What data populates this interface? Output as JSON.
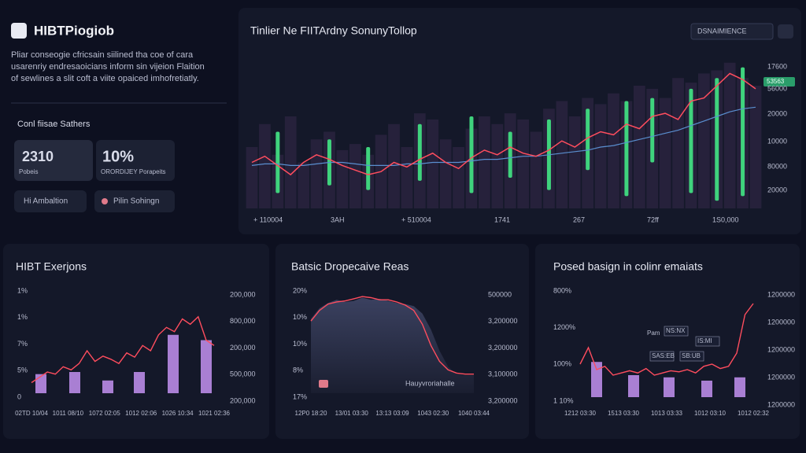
{
  "sidebar": {
    "brand": "HIBTPiogiob",
    "description": [
      "Pliar conseogie cfricsain siilined tha coe of cara",
      "usarenriy endresaoicians inform sin vijeion Flaition",
      "of sewlines a slit coft a viite opaiced imhofretiatly."
    ],
    "section_title": "Conl fiisae Sathers",
    "stats": [
      {
        "value": "2310",
        "label": "Pobeis"
      },
      {
        "value": "10%",
        "label": "ORORDIJEY Porapeits"
      }
    ],
    "buttons": [
      "Hi Ambaltion",
      "Pilin Sohingn"
    ]
  },
  "main_chart": {
    "title": "Tinlier Ne FIITArdny SonunyTollop",
    "button": "DSNAIMIENCE",
    "badge": "53563",
    "y_labels": [
      "17600",
      "56000",
      "20000",
      "10000",
      "80000",
      "20000"
    ],
    "x_labels": [
      "+ 110004",
      "3AH",
      "+ 510004",
      "1741",
      "267",
      "72ff",
      "1S0,000"
    ],
    "ylim": [
      0,
      100
    ],
    "price": [
      30,
      34,
      28,
      22,
      30,
      35,
      32,
      28,
      25,
      22,
      24,
      30,
      27,
      32,
      36,
      30,
      26,
      33,
      38,
      35,
      40,
      36,
      34,
      38,
      44,
      40,
      46,
      50,
      48,
      55,
      52,
      60,
      62,
      58,
      70,
      72,
      80,
      88,
      84,
      78
    ],
    "average": [
      28,
      29,
      29,
      28,
      28,
      29,
      30,
      30,
      29,
      28,
      28,
      28,
      29,
      29,
      30,
      30,
      30,
      31,
      32,
      32,
      33,
      34,
      34,
      35,
      36,
      37,
      38,
      40,
      41,
      43,
      45,
      47,
      49,
      51,
      54,
      57,
      60,
      63,
      65,
      66
    ],
    "volume": [
      40,
      55,
      35,
      60,
      30,
      45,
      50,
      38,
      42,
      35,
      48,
      55,
      40,
      62,
      58,
      45,
      40,
      52,
      60,
      55,
      62,
      58,
      50,
      65,
      70,
      60,
      72,
      68,
      75,
      70,
      80,
      78,
      72,
      85,
      82,
      88,
      90,
      95,
      85,
      80
    ],
    "candles": [
      null,
      null,
      [
        10,
        50
      ],
      null,
      null,
      null,
      [
        15,
        45
      ],
      null,
      null,
      [
        12,
        40
      ],
      null,
      null,
      null,
      [
        18,
        55
      ],
      null,
      null,
      null,
      [
        10,
        60
      ],
      null,
      null,
      [
        20,
        50
      ],
      null,
      null,
      [
        12,
        58
      ],
      null,
      null,
      [
        25,
        65
      ],
      null,
      null,
      [
        8,
        70
      ],
      null,
      [
        30,
        72
      ],
      null,
      null,
      [
        10,
        78
      ],
      null,
      [
        5,
        85
      ],
      null,
      [
        8,
        92
      ],
      null
    ]
  },
  "panels": [
    {
      "title": "HIBT Exerjons",
      "left_labels": [
        "1%",
        "1%",
        "7%",
        "5%",
        "0"
      ],
      "right_labels": [
        "200,000",
        "800,000",
        "200,000",
        "500,000",
        "200,000"
      ],
      "x_labels": [
        "02TD 10/04",
        "1011 08/10",
        "1072 02:05",
        "1012 02:06",
        "1026 10:34",
        "1021 02:36"
      ],
      "ylim": [
        0,
        100
      ],
      "bars": [
        18,
        20,
        12,
        20,
        55,
        50
      ],
      "line": [
        10,
        15,
        20,
        18,
        25,
        22,
        28,
        40,
        30,
        35,
        32,
        28,
        38,
        34,
        45,
        40,
        55,
        62,
        58,
        70,
        65,
        72,
        50,
        45
      ]
    },
    {
      "title": "Batsic Dropecaive Reas",
      "left_labels": [
        "20%",
        "10%",
        "10%",
        "8%",
        "17%"
      ],
      "right_labels": [
        "500000",
        "3,200000",
        "3,200000",
        "3,100000",
        "3,200000"
      ],
      "x_labels": [
        "12P0 18:20",
        "13/01 03:30",
        "13:13 03:09",
        "1043 02:30",
        "1040 03:44"
      ],
      "legend": "Hauyvroriahalle",
      "ylim": [
        0,
        100
      ],
      "bars": [],
      "area": [
        70,
        80,
        85,
        88,
        86,
        87,
        90,
        88,
        89,
        87,
        85,
        84,
        82,
        75,
        60,
        40,
        25,
        18,
        17,
        17
      ],
      "line": [
        68,
        78,
        84,
        86,
        87,
        89,
        91,
        90,
        88,
        88,
        86,
        83,
        78,
        65,
        45,
        30,
        22,
        19,
        18,
        18
      ]
    },
    {
      "title": "Posed basign in colinr emaiats",
      "left_labels": [
        "800%",
        "1200%",
        "100%",
        "1 10%"
      ],
      "right_labels": [
        "1200000",
        "1200000",
        "1200000",
        "1200000",
        "1200000"
      ],
      "x_labels": [
        "1212 03:30",
        "1513 03:30",
        "1013 03:33",
        "1012 03:10",
        "1012 02:32"
      ],
      "annotations": [
        "Pam",
        "NS:NX",
        "SAS:EB",
        "IS:MI",
        "SB:UB"
      ],
      "ylim": [
        0,
        100
      ],
      "bars": [
        32,
        20,
        18,
        15,
        18
      ],
      "line": [
        30,
        45,
        25,
        28,
        20,
        22,
        24,
        22,
        26,
        20,
        22,
        24,
        23,
        25,
        22,
        28,
        30,
        26,
        28,
        40,
        75,
        85
      ]
    }
  ]
}
